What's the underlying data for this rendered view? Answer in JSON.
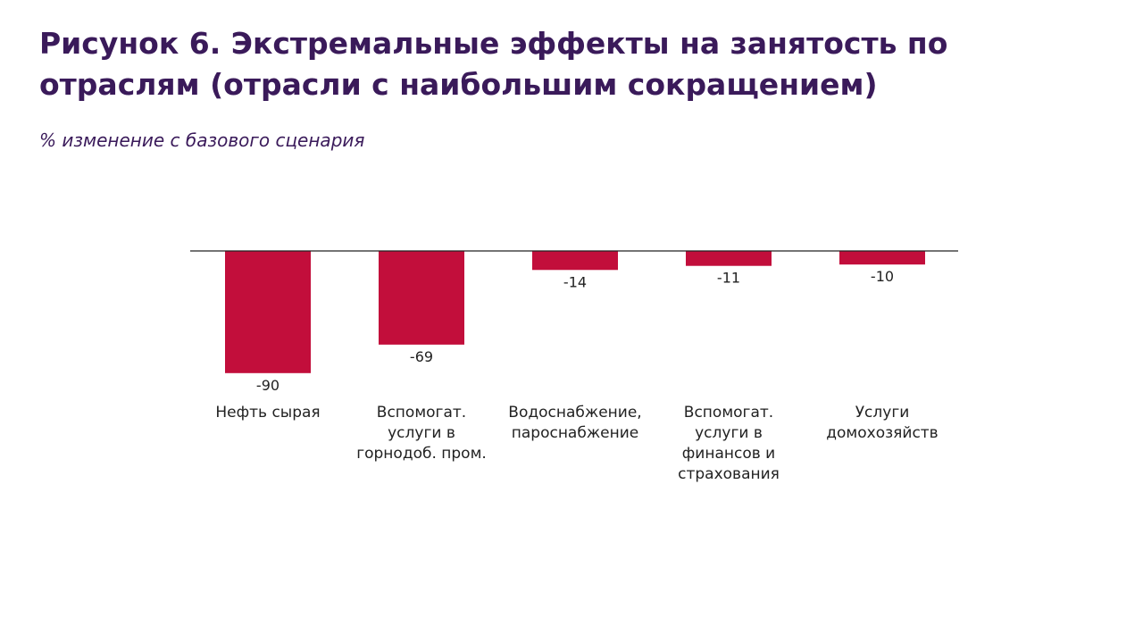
{
  "title_lines": [
    "Рисунок 6. Экстремальные эффекты на занятость по",
    "отраслям (отрасли с наибольшим сокращением)"
  ],
  "subtitle": "% изменение с базового сценария",
  "colors": {
    "title": "#3a1a5a",
    "bar": "#c20e3b",
    "axis": "#222222",
    "text": "#222222"
  },
  "chart_data": {
    "type": "bar",
    "categories": [
      [
        "Нефть сырая"
      ],
      [
        "Вспомогат.",
        "услуги в",
        "горнодоб. пром."
      ],
      [
        "Водоснабжение,",
        "пароснабжение"
      ],
      [
        "Вспомогат.",
        "услуги в",
        "финансов и",
        "страхования"
      ],
      [
        "Услуги",
        "домохозяйств"
      ]
    ],
    "values": [
      -90,
      -69,
      -14,
      -11,
      -10
    ],
    "value_labels": [
      "-90",
      "-69",
      "-14",
      "-11",
      "-10"
    ],
    "ylim": [
      -100,
      0
    ],
    "grid": false,
    "legend": "none",
    "xlabel": "",
    "ylabel": ""
  }
}
